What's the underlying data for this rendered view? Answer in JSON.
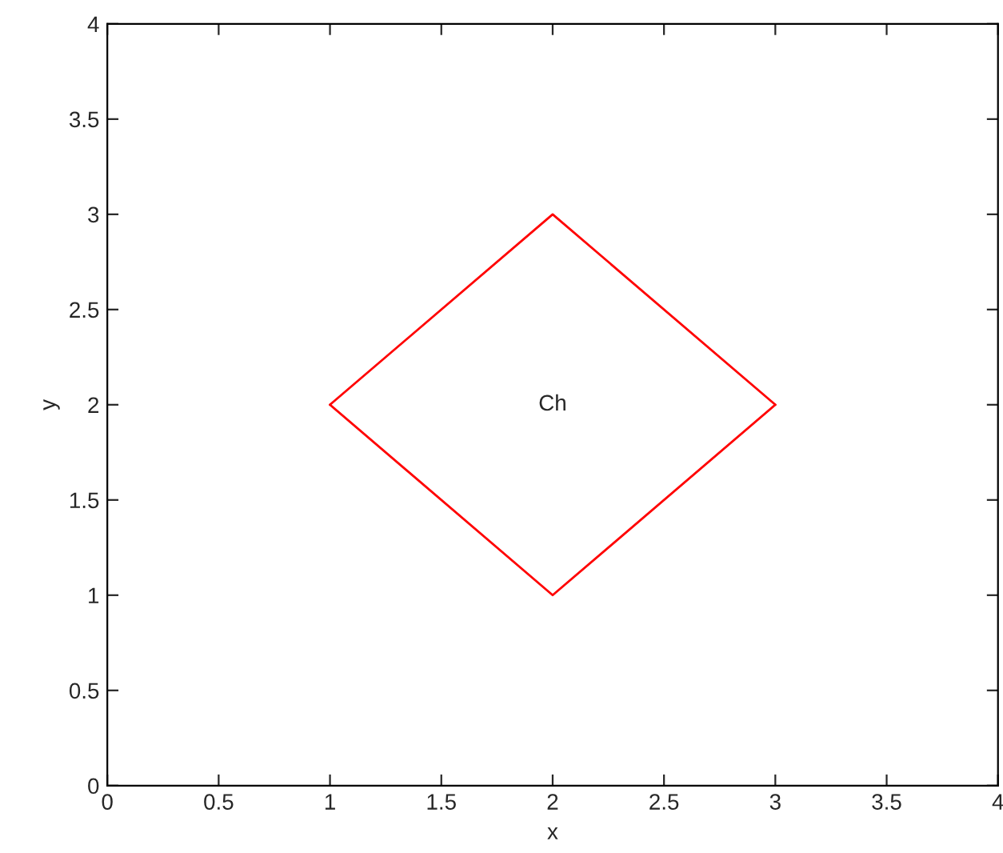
{
  "chart_data": {
    "type": "line",
    "xlabel": "x",
    "ylabel": "y",
    "series": [
      {
        "color": "#ff0000",
        "x": [
          1,
          2,
          3
        ],
        "values": [
          2,
          3,
          2
        ]
      },
      {
        "color": "#ff0000",
        "x": [
          1,
          2,
          3
        ],
        "values": [
          2,
          1,
          2
        ]
      }
    ],
    "annotations": [
      "Ch"
    ],
    "xlim": [
      0,
      4
    ],
    "ylim": [
      0,
      4
    ],
    "xticks": [
      0,
      0.5,
      1,
      1.5,
      2,
      2.5,
      3,
      3.5,
      4
    ],
    "yticks": [
      0,
      0.5,
      1,
      1.5,
      2,
      2.5,
      3,
      3.5,
      4
    ],
    "grid": false,
    "legend": false
  }
}
